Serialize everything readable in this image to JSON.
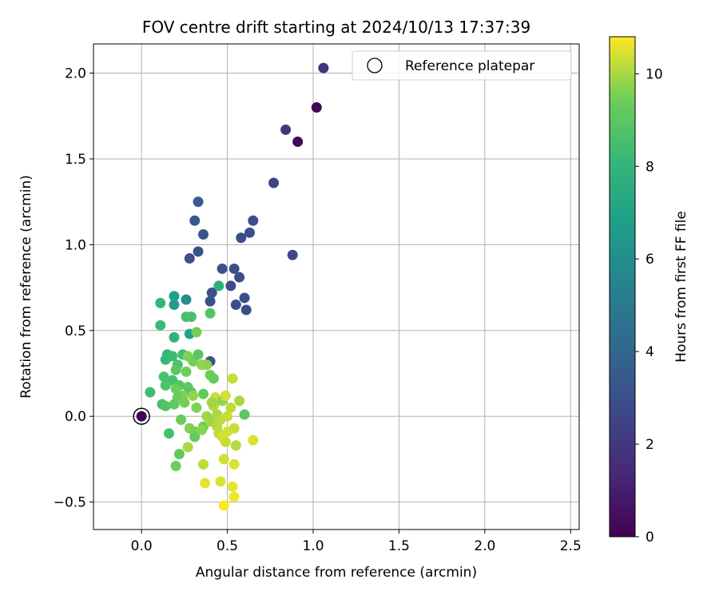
{
  "chart_data": {
    "type": "scatter",
    "title": "FOV centre drift starting at 2024/10/13 17:37:39",
    "xlabel": "Angular distance from reference (arcmin)",
    "ylabel": "Rotation from reference (arcmin)",
    "xlim": [
      -0.28,
      2.55
    ],
    "ylim": [
      -0.66,
      2.17
    ],
    "xticks": [
      0.0,
      0.5,
      1.0,
      1.5,
      2.0,
      2.5
    ],
    "xtick_labels": [
      "0.0",
      "0.5",
      "1.0",
      "1.5",
      "2.0",
      "2.5"
    ],
    "yticks": [
      -0.5,
      0.0,
      0.5,
      1.0,
      1.5,
      2.0
    ],
    "ytick_labels": [
      "−0.5",
      "0.0",
      "0.5",
      "1.0",
      "1.5",
      "2.0"
    ],
    "grid": true,
    "legend": {
      "position": "top-right",
      "entries": [
        "Reference platepar"
      ]
    },
    "colorbar": {
      "label": "Hours from first FF file",
      "colormap": "viridis",
      "range": [
        0,
        10.8
      ],
      "ticks": [
        0,
        2,
        4,
        6,
        8,
        10
      ],
      "tick_labels": [
        "0",
        "2",
        "4",
        "6",
        "8",
        "10"
      ]
    },
    "reference_point": {
      "x": 0.0,
      "y": 0.0
    },
    "points": [
      [
        0.0,
        0.0,
        0.0
      ],
      [
        1.02,
        1.8,
        0.1
      ],
      [
        0.91,
        1.6,
        0.2
      ],
      [
        1.06,
        2.03,
        1.7
      ],
      [
        0.84,
        1.67,
        2.0
      ],
      [
        0.77,
        1.36,
        2.4
      ],
      [
        0.88,
        0.94,
        2.6
      ],
      [
        0.58,
        1.04,
        2.9
      ],
      [
        0.63,
        1.07,
        2.9
      ],
      [
        0.65,
        1.14,
        3.0
      ],
      [
        0.28,
        0.92,
        3.0
      ],
      [
        0.33,
        0.96,
        3.1
      ],
      [
        0.36,
        1.06,
        3.2
      ],
      [
        0.31,
        1.14,
        3.3
      ],
      [
        0.33,
        1.25,
        3.4
      ],
      [
        0.47,
        0.86,
        3.1
      ],
      [
        0.54,
        0.86,
        3.0
      ],
      [
        0.57,
        0.81,
        2.8
      ],
      [
        0.52,
        0.76,
        2.9
      ],
      [
        0.41,
        0.72,
        3.0
      ],
      [
        0.4,
        0.67,
        3.1
      ],
      [
        0.55,
        0.65,
        3.0
      ],
      [
        0.6,
        0.69,
        2.9
      ],
      [
        0.61,
        0.62,
        3.0
      ],
      [
        0.4,
        0.32,
        3.2
      ],
      [
        0.26,
        0.68,
        6.0
      ],
      [
        0.19,
        0.7,
        6.8
      ],
      [
        0.19,
        0.65,
        6.7
      ],
      [
        0.28,
        0.48,
        7.0
      ],
      [
        0.45,
        0.76,
        7.6
      ],
      [
        0.11,
        0.66,
        8.0
      ],
      [
        0.11,
        0.53,
        8.2
      ],
      [
        0.19,
        0.46,
        7.9
      ],
      [
        0.26,
        0.58,
        8.5
      ],
      [
        0.29,
        0.58,
        8.6
      ],
      [
        0.4,
        0.6,
        8.8
      ],
      [
        0.32,
        0.49,
        9.5
      ],
      [
        0.15,
        0.36,
        8.0
      ],
      [
        0.14,
        0.33,
        8.1
      ],
      [
        0.18,
        0.35,
        8.3
      ],
      [
        0.21,
        0.3,
        8.6
      ],
      [
        0.24,
        0.36,
        8.4
      ],
      [
        0.27,
        0.35,
        9.6
      ],
      [
        0.3,
        0.32,
        9.5
      ],
      [
        0.33,
        0.36,
        9.0
      ],
      [
        0.35,
        0.3,
        9.8
      ],
      [
        0.38,
        0.3,
        9.7
      ],
      [
        0.4,
        0.24,
        9.4
      ],
      [
        0.42,
        0.22,
        9.2
      ],
      [
        0.26,
        0.26,
        9.4
      ],
      [
        0.2,
        0.27,
        9.0
      ],
      [
        0.13,
        0.23,
        8.6
      ],
      [
        0.14,
        0.18,
        8.7
      ],
      [
        0.18,
        0.21,
        8.5
      ],
      [
        0.22,
        0.18,
        8.8
      ],
      [
        0.27,
        0.17,
        9.1
      ],
      [
        0.29,
        0.14,
        8.9
      ],
      [
        0.24,
        0.12,
        9.6
      ],
      [
        0.2,
        0.16,
        9.4
      ],
      [
        0.05,
        0.14,
        8.4
      ],
      [
        0.12,
        0.07,
        8.6
      ],
      [
        0.14,
        0.06,
        8.8
      ],
      [
        0.19,
        0.07,
        9.1
      ],
      [
        0.21,
        0.11,
        9.3
      ],
      [
        0.25,
        0.08,
        9.5
      ],
      [
        0.3,
        0.12,
        9.8
      ],
      [
        0.32,
        0.05,
        9.6
      ],
      [
        0.36,
        0.13,
        9.2
      ],
      [
        0.38,
        0.0,
        9.9
      ],
      [
        0.42,
        0.06,
        10.1
      ],
      [
        0.43,
        0.11,
        10.3
      ],
      [
        0.47,
        0.09,
        9.8
      ],
      [
        0.49,
        0.12,
        10.4
      ],
      [
        0.52,
        0.05,
        10.2
      ],
      [
        0.57,
        0.09,
        10.0
      ],
      [
        0.6,
        0.01,
        9.0
      ],
      [
        0.53,
        0.22,
        10.3
      ],
      [
        0.23,
        -0.02,
        9.3
      ],
      [
        0.28,
        -0.07,
        9.6
      ],
      [
        0.31,
        -0.09,
        9.5
      ],
      [
        0.31,
        -0.12,
        9.2
      ],
      [
        0.36,
        -0.06,
        9.4
      ],
      [
        0.4,
        -0.03,
        9.9
      ],
      [
        0.44,
        -0.06,
        10.1
      ],
      [
        0.45,
        -0.1,
        10.2
      ],
      [
        0.47,
        -0.12,
        10.4
      ],
      [
        0.49,
        -0.15,
        10.3
      ],
      [
        0.5,
        -0.09,
        10.4
      ],
      [
        0.54,
        -0.07,
        10.3
      ],
      [
        0.55,
        -0.17,
        10.1
      ],
      [
        0.65,
        -0.14,
        10.5
      ],
      [
        0.16,
        -0.1,
        8.5
      ],
      [
        0.22,
        -0.22,
        9.1
      ],
      [
        0.2,
        -0.29,
        9.4
      ],
      [
        0.27,
        -0.18,
        10.0
      ],
      [
        0.36,
        -0.28,
        10.2
      ],
      [
        0.48,
        -0.25,
        10.4
      ],
      [
        0.54,
        -0.28,
        10.5
      ],
      [
        0.37,
        -0.39,
        10.6
      ],
      [
        0.46,
        -0.38,
        10.5
      ],
      [
        0.53,
        -0.41,
        10.6
      ],
      [
        0.54,
        -0.47,
        10.7
      ],
      [
        0.48,
        -0.52,
        10.8
      ],
      [
        0.44,
        0.01,
        10.0
      ],
      [
        0.46,
        -0.02,
        10.2
      ],
      [
        0.5,
        0.0,
        10.3
      ],
      [
        0.35,
        -0.08,
        9.7
      ],
      [
        0.41,
        0.08,
        9.9
      ]
    ]
  }
}
